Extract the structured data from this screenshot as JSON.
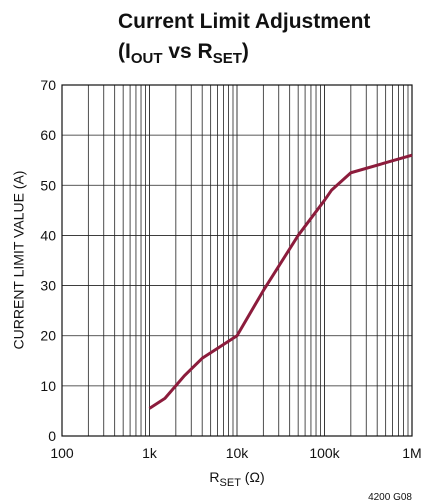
{
  "chart_data": {
    "type": "line",
    "title_line1": "Current Limit Adjustment",
    "title_line2": [
      "(I",
      "OUT",
      " vs R",
      "SET",
      ")"
    ],
    "xlabel": [
      "R",
      "SET",
      " (Ω)"
    ],
    "ylabel": "CURRENT LIMIT VALUE (A)",
    "note": "4200 G08",
    "xscale": "log",
    "xlim": [
      100,
      1000000
    ],
    "xticks": [
      100,
      {
        "value": 1000,
        "label": "1k"
      },
      {
        "value": 10000,
        "label": "10k"
      },
      {
        "value": 100000,
        "label": "100k"
      },
      {
        "value": 1000000,
        "label": "1M"
      }
    ],
    "x_minor_ticks": [
      200,
      300,
      400,
      500,
      600,
      700,
      800,
      900,
      2000,
      3000,
      4000,
      5000,
      6000,
      7000,
      8000,
      9000,
      20000,
      30000,
      40000,
      50000,
      60000,
      70000,
      80000,
      90000,
      200000,
      300000,
      400000,
      500000,
      600000,
      700000,
      800000,
      900000
    ],
    "ylim": [
      0,
      70
    ],
    "yticks": [
      0,
      10,
      20,
      30,
      40,
      50,
      60,
      70
    ],
    "grid": true,
    "series": [
      {
        "color": "#8c1c3c",
        "x": [
          1000,
          1500,
          2500,
          4000,
          10000,
          20000,
          50000,
          100000,
          120000,
          200000,
          500000,
          1000000
        ],
        "values": [
          5.5,
          7.5,
          12,
          15.5,
          20,
          29,
          40,
          47,
          49,
          52.5,
          54.5,
          56
        ]
      }
    ]
  }
}
